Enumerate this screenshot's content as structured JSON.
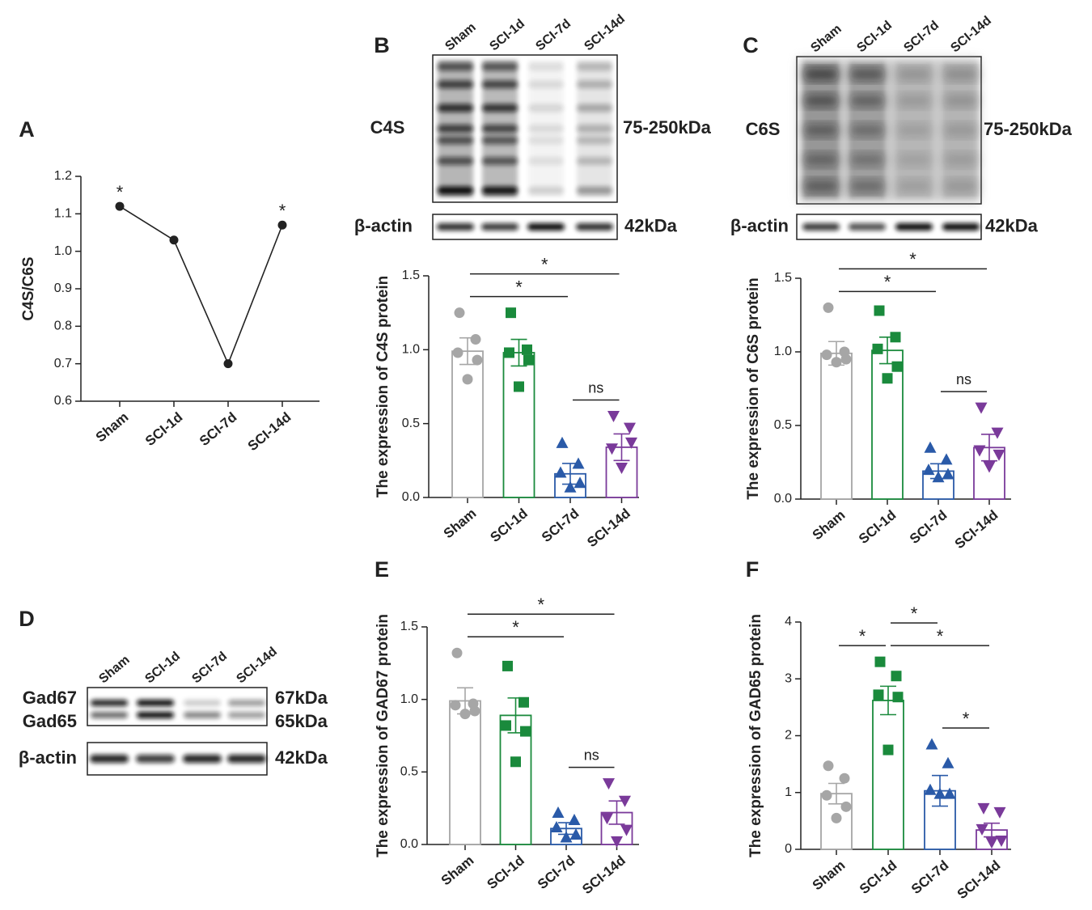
{
  "chart_data": [
    {
      "type": "line",
      "panel": "A",
      "ylabel": "C4S/C6S",
      "categories": [
        "Sham",
        "SCI-1d",
        "SCI-7d",
        "SCI-14d"
      ],
      "values": [
        1.12,
        1.03,
        0.7,
        1.07
      ],
      "color": "#222222",
      "ylim": [
        0.6,
        1.2
      ],
      "yticks": [
        0.6,
        0.7,
        0.8,
        0.9,
        {
          "value": 1,
          "label": "1.0"
        },
        1.1,
        1.2
      ],
      "annotations": [
        {
          "index": 0,
          "label": "*"
        },
        {
          "index": 3,
          "label": "*"
        }
      ]
    },
    {
      "type": "bar",
      "panel": "B",
      "ylabel": "The expression of C4S protein",
      "categories": [
        "Sham",
        "SCI-1d",
        "SCI-7d",
        "SCI-14d"
      ],
      "values": [
        0.99,
        0.98,
        0.16,
        0.34
      ],
      "errors": [
        0.09,
        0.09,
        0.07,
        0.09
      ],
      "points": [
        [
          1.25,
          1.07,
          0.98,
          0.93,
          0.8
        ],
        [
          1.25,
          1.0,
          0.98,
          0.93,
          0.75
        ],
        [
          0.37,
          0.23,
          0.17,
          0.1,
          0.07
        ],
        [
          0.55,
          0.47,
          0.33,
          0.37,
          0.2
        ]
      ],
      "colors": [
        "#a6a6a6",
        "#1a8a3c",
        "#2a5aa8",
        "#7a3a9a"
      ],
      "markers": [
        "circle",
        "square",
        "triangle-up",
        "triangle-down"
      ],
      "ylim": [
        0,
        1.5
      ],
      "yticks": [
        {
          "value": 0,
          "label": "0.0"
        },
        0.5,
        {
          "value": 1,
          "label": "1.0"
        },
        1.5
      ],
      "significance": [
        {
          "pair": [
            2,
            3
          ],
          "label": "ns"
        },
        {
          "pair": [
            0,
            2
          ],
          "label": "*"
        },
        {
          "pair": [
            0,
            3
          ],
          "label": "*"
        }
      ],
      "blot": {
        "lanes": [
          "Sham",
          "SCI-1d",
          "SCI-7d",
          "SCI-14d"
        ],
        "rows": [
          {
            "label": "C4S",
            "size": "75-250kDa"
          },
          {
            "label": "β-actin",
            "size": "42kDa"
          }
        ]
      }
    },
    {
      "type": "bar",
      "panel": "C",
      "ylabel": "The expression of C6S protein",
      "categories": [
        "Sham",
        "SCI-1d",
        "SCI-7d",
        "SCI-14d"
      ],
      "values": [
        0.99,
        1.01,
        0.19,
        0.35
      ],
      "errors": [
        0.08,
        0.09,
        0.05,
        0.09
      ],
      "points": [
        [
          1.3,
          1.0,
          0.98,
          0.95,
          0.93
        ],
        [
          1.28,
          1.1,
          1.02,
          0.9,
          0.82
        ],
        [
          0.35,
          0.27,
          0.2,
          0.17,
          0.15
        ],
        [
          0.62,
          0.45,
          0.33,
          0.3,
          0.22
        ]
      ],
      "colors": [
        "#a6a6a6",
        "#1a8a3c",
        "#2a5aa8",
        "#7a3a9a"
      ],
      "markers": [
        "circle",
        "square",
        "triangle-up",
        "triangle-down"
      ],
      "ylim": [
        0,
        1.5
      ],
      "yticks": [
        {
          "value": 0,
          "label": "0.0"
        },
        0.5,
        {
          "value": 1,
          "label": "1.0"
        },
        1.5
      ],
      "significance": [
        {
          "pair": [
            2,
            3
          ],
          "label": "ns"
        },
        {
          "pair": [
            0,
            2
          ],
          "label": "*"
        },
        {
          "pair": [
            0,
            3
          ],
          "label": "*"
        }
      ],
      "blot": {
        "lanes": [
          "Sham",
          "SCI-1d",
          "SCI-7d",
          "SCI-14d"
        ],
        "rows": [
          {
            "label": "C6S",
            "size": "75-250kDa"
          },
          {
            "label": "β-actin",
            "size": "42kDa"
          }
        ]
      }
    },
    {
      "type": "bar",
      "panel": "E",
      "ylabel": "The expression of GAD67 protein",
      "categories": [
        "Sham",
        "SCI-1d",
        "SCI-7d",
        "SCI-14d"
      ],
      "values": [
        0.99,
        0.89,
        0.11,
        0.22
      ],
      "errors": [
        0.09,
        0.12,
        0.04,
        0.08
      ],
      "points": [
        [
          1.32,
          0.97,
          0.96,
          0.92,
          0.9
        ],
        [
          1.23,
          0.98,
          0.82,
          0.78,
          0.57
        ],
        [
          0.22,
          0.17,
          0.12,
          0.07,
          0.05
        ],
        [
          0.42,
          0.3,
          0.18,
          0.1,
          0.02
        ]
      ],
      "colors": [
        "#a6a6a6",
        "#1a8a3c",
        "#2a5aa8",
        "#7a3a9a"
      ],
      "markers": [
        "circle",
        "square",
        "triangle-up",
        "triangle-down"
      ],
      "ylim": [
        0,
        1.5
      ],
      "yticks": [
        {
          "value": 0,
          "label": "0.0"
        },
        0.5,
        {
          "value": 1,
          "label": "1.0"
        },
        1.5
      ],
      "significance": [
        {
          "pair": [
            2,
            3
          ],
          "label": "ns"
        },
        {
          "pair": [
            0,
            2
          ],
          "label": "*"
        },
        {
          "pair": [
            0,
            3
          ],
          "label": "*"
        }
      ]
    },
    {
      "type": "bar",
      "panel": "F",
      "ylabel": "The expression of GAD65 protein",
      "categories": [
        "Sham",
        "SCI-1d",
        "SCI-7d",
        "SCI-14d"
      ],
      "values": [
        0.98,
        2.62,
        1.03,
        0.34
      ],
      "errors": [
        0.18,
        0.25,
        0.27,
        0.12
      ],
      "points": [
        [
          1.47,
          1.25,
          0.95,
          0.75,
          0.55
        ],
        [
          3.3,
          3.05,
          2.72,
          2.68,
          1.75
        ],
        [
          1.85,
          1.52,
          1.05,
          0.98,
          0.98
        ],
        [
          0.72,
          0.65,
          0.35,
          0.15,
          0.12
        ]
      ],
      "colors": [
        "#a6a6a6",
        "#1a8a3c",
        "#2a5aa8",
        "#7a3a9a"
      ],
      "markers": [
        "circle",
        "square",
        "triangle-up",
        "triangle-down"
      ],
      "ylim": [
        0,
        4
      ],
      "yticks": [
        0,
        1,
        2,
        3,
        4
      ],
      "significance": [
        {
          "pair": [
            2,
            3
          ],
          "label": "*"
        },
        {
          "pair": [
            0,
            1
          ],
          "label": "*"
        },
        {
          "pair": [
            1,
            3
          ],
          "label": "*"
        },
        {
          "pair": [
            1,
            2
          ],
          "label": "*"
        }
      ]
    }
  ],
  "blot_panel": {
    "panel": "D",
    "lanes": [
      "Sham",
      "SCI-1d",
      "SCI-7d",
      "SCI-14d"
    ],
    "rows": [
      {
        "label": "Gad67",
        "size": "67kDa"
      },
      {
        "label": "Gad65",
        "size": "65kDa"
      },
      {
        "label": "β-actin",
        "size": "42kDa"
      }
    ]
  }
}
